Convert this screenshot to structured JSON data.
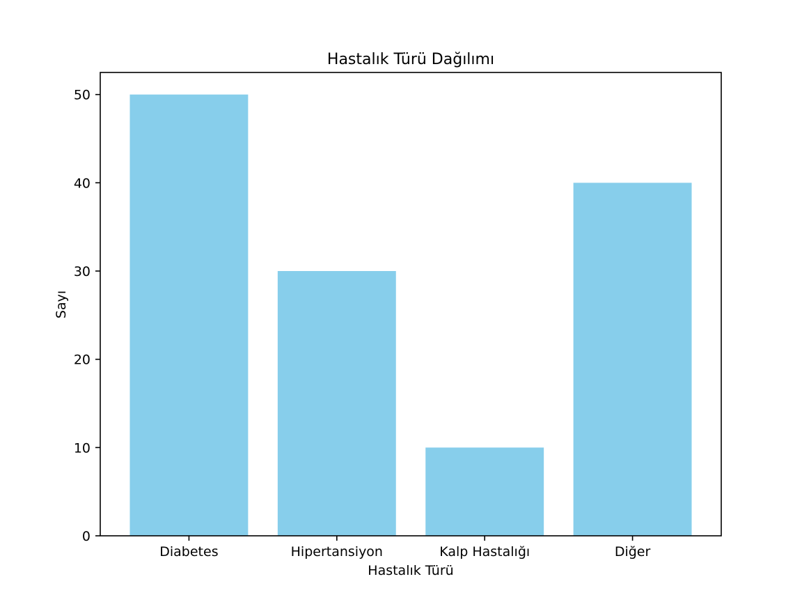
{
  "chart_data": {
    "type": "bar",
    "title": "Hastalık Türü Dağılımı",
    "xlabel": "Hastalık Türü",
    "ylabel": "Sayı",
    "categories": [
      "Diabetes",
      "Hipertansiyon",
      "Kalp Hastalığı",
      "Diğer"
    ],
    "values": [
      50,
      30,
      10,
      40
    ],
    "ylim": [
      0,
      52.5
    ],
    "yticks": [
      0,
      10,
      20,
      30,
      40,
      50
    ],
    "bar_color": "#87ceeb",
    "grid": false,
    "legend": "none"
  }
}
